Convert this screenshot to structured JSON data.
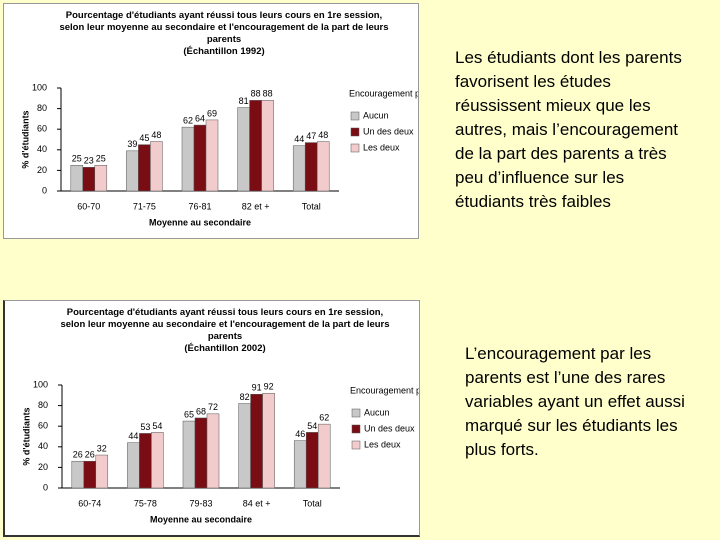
{
  "chart_data": [
    {
      "type": "bar",
      "title": "Pourcentage d'étudiants ayant réussi tous leurs cours en 1re session, selon leur moyenne au secondaire et l'encouragement de la part de leurs parents",
      "subtitle": "(Échantillon 1992)",
      "y_label": "% d'étudiants",
      "x_label": "Moyenne au secondaire",
      "legend_title": "Encouragement parents",
      "categories": [
        "60-70",
        "71-75",
        "76-81",
        "82 et +",
        "Total"
      ],
      "series": [
        {
          "name": "Aucun",
          "color": "#c8c8c8",
          "values": [
            25,
            39,
            62,
            81,
            44
          ]
        },
        {
          "name": "Un des deux",
          "color": "#7a0c14",
          "values": [
            23,
            45,
            64,
            88,
            47
          ]
        },
        {
          "name": "Les deux",
          "color": "#f2cccc",
          "values": [
            25,
            48,
            69,
            88,
            48
          ]
        }
      ],
      "ylim": [
        0,
        100
      ],
      "yticks": [
        0,
        20,
        40,
        60,
        80,
        100
      ],
      "grid": false,
      "legend": "right"
    },
    {
      "type": "bar",
      "title": "Pourcentage d'étudiants ayant réussi tous leurs cours en 1re session, selon leur moyenne au secondaire et l'encouragement de la part de leurs parents",
      "subtitle": "(Échantillon 2002)",
      "y_label": "% d'étudiants",
      "x_label": "Moyenne au secondaire",
      "legend_title": "Encouragement parents",
      "categories": [
        "60-74",
        "75-78",
        "79-83",
        "84 et +",
        "Total"
      ],
      "series": [
        {
          "name": "Aucun",
          "color": "#c8c8c8",
          "values": [
            26,
            44,
            65,
            82,
            46
          ]
        },
        {
          "name": "Un des deux",
          "color": "#7a0c14",
          "values": [
            26,
            53,
            68,
            91,
            54
          ]
        },
        {
          "name": "Les deux",
          "color": "#f2cccc",
          "values": [
            32,
            54,
            72,
            92,
            62
          ]
        }
      ],
      "ylim": [
        0,
        100
      ],
      "yticks": [
        0,
        20,
        40,
        60,
        80,
        100
      ],
      "grid": false,
      "legend": "right"
    }
  ],
  "notes": [
    "Les étudiants dont les parents favorisent les études réussissent mieux que les autres, mais l’encouragement de la part des parents a très peu d’influence sur les étudiants très faibles",
    "L’encouragement par les parents est l’une des rares variables ayant un effet aussi marqué sur les étudiants les plus forts."
  ]
}
